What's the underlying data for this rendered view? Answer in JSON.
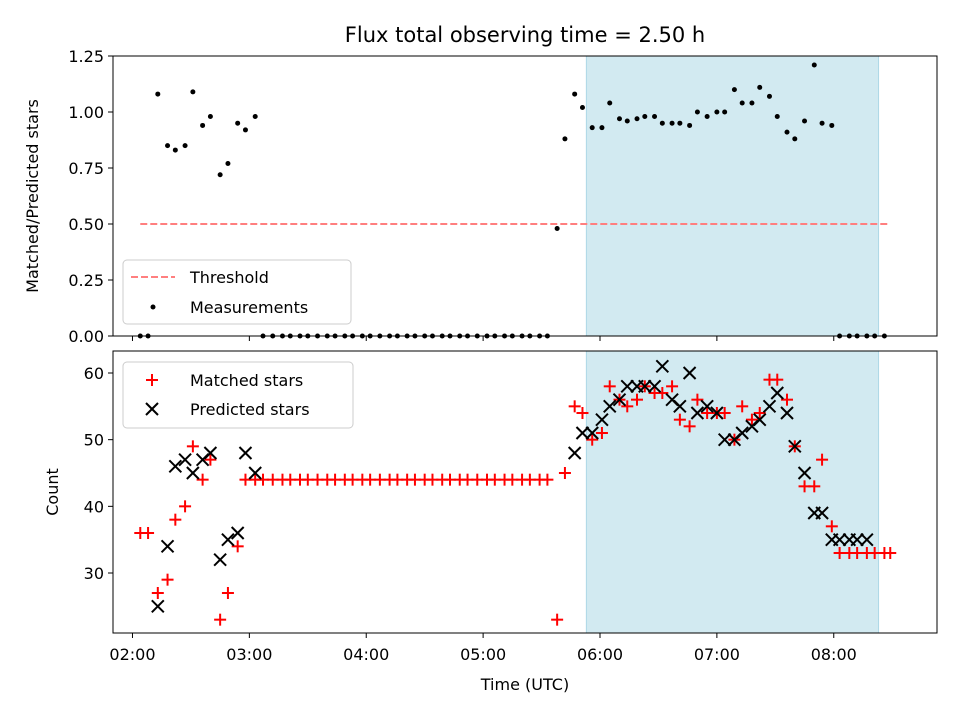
{
  "chart_data": [
    {
      "type": "scatter",
      "title": "Flux total observing time = 2.50 h",
      "xlabel": "",
      "ylabel": "Matched/Predicted stars",
      "ylim": [
        0,
        1.25
      ],
      "yticks": [
        "0.00",
        "0.25",
        "0.50",
        "0.75",
        "1.00",
        "1.25"
      ],
      "xlim": [
        "01:50",
        "08:53"
      ],
      "grid": false,
      "legend_position": "lower-left",
      "shaded_region": {
        "start": "05:53",
        "end": "08:23",
        "color": "#add8e6"
      },
      "threshold": {
        "name": "Threshold",
        "y": 0.5,
        "x_start": "02:04",
        "x_end": "08:29",
        "color": "#ff7f7f",
        "style": "dashed"
      },
      "series": [
        {
          "name": "Measurements",
          "color": "#000000",
          "marker": "dot",
          "x": [
            "02:04",
            "02:08",
            "02:13",
            "02:18",
            "02:22",
            "02:27",
            "02:31",
            "02:36",
            "02:40",
            "02:45",
            "02:49",
            "02:54",
            "02:58",
            "03:03",
            "03:07",
            "03:12",
            "03:17",
            "03:21",
            "03:26",
            "03:30",
            "03:35",
            "03:40",
            "03:44",
            "03:49",
            "03:53",
            "03:58",
            "04:02",
            "04:07",
            "04:12",
            "04:16",
            "04:21",
            "04:25",
            "04:30",
            "04:34",
            "04:39",
            "04:43",
            "04:48",
            "04:52",
            "04:57",
            "05:02",
            "05:06",
            "05:11",
            "05:15",
            "05:20",
            "05:24",
            "05:29",
            "05:33",
            "05:38",
            "05:42",
            "05:47",
            "05:51",
            "05:56",
            "06:01",
            "06:05",
            "06:10",
            "06:14",
            "06:19",
            "06:23",
            "06:28",
            "06:32",
            "06:37",
            "06:41",
            "06:46",
            "06:50",
            "06:55",
            "07:00",
            "07:04",
            "07:09",
            "07:13",
            "07:18",
            "07:22",
            "07:27",
            "07:31",
            "07:36",
            "07:40",
            "07:45",
            "07:50",
            "07:54",
            "07:59",
            "08:03",
            "08:08",
            "08:12",
            "08:17",
            "08:21",
            "08:26"
          ],
          "y": [
            0,
            0,
            1.08,
            0.85,
            0.83,
            0.85,
            1.09,
            0.94,
            0.98,
            0.72,
            0.77,
            0.95,
            0.92,
            0.98,
            0,
            0,
            0,
            0,
            0,
            0,
            0,
            0,
            0,
            0,
            0,
            0,
            0,
            0,
            0,
            0,
            0,
            0,
            0,
            0,
            0,
            0,
            0,
            0,
            0,
            0,
            0,
            0,
            0,
            0,
            0,
            0,
            0,
            0.48,
            0.88,
            1.08,
            1.02,
            0.93,
            0.93,
            1.04,
            0.97,
            0.96,
            0.97,
            0.98,
            0.98,
            0.95,
            0.95,
            0.95,
            0.94,
            1.0,
            0.98,
            1.0,
            1.0,
            1.1,
            1.04,
            1.04,
            1.11,
            1.07,
            0.98,
            0.91,
            0.88,
            0.96,
            1.21,
            0.95,
            0.94,
            0,
            0,
            0,
            0,
            0,
            0
          ]
        }
      ]
    },
    {
      "type": "scatter",
      "title": "",
      "xlabel": "Time (UTC)",
      "ylabel": "Count",
      "ylim": [
        21,
        63.3
      ],
      "yticks": [
        "30",
        "40",
        "50",
        "60"
      ],
      "xticks": [
        "02:00",
        "03:00",
        "04:00",
        "05:00",
        "06:00",
        "07:00",
        "08:00"
      ],
      "grid": false,
      "legend_position": "upper-left",
      "shaded_region": {
        "start": "05:53",
        "end": "08:23",
        "color": "#add8e6"
      },
      "series": [
        {
          "name": "Matched stars",
          "color": "#ff0000",
          "marker": "plus",
          "x": [
            "02:04",
            "02:08",
            "02:13",
            "02:18",
            "02:22",
            "02:27",
            "02:31",
            "02:36",
            "02:40",
            "02:45",
            "02:49",
            "02:54",
            "02:58",
            "03:03",
            "03:07",
            "03:12",
            "03:17",
            "03:21",
            "03:26",
            "03:30",
            "03:35",
            "03:40",
            "03:44",
            "03:49",
            "03:53",
            "03:58",
            "04:02",
            "04:07",
            "04:12",
            "04:16",
            "04:21",
            "04:25",
            "04:30",
            "04:34",
            "04:39",
            "04:43",
            "04:48",
            "04:52",
            "04:57",
            "05:02",
            "05:06",
            "05:11",
            "05:15",
            "05:20",
            "05:24",
            "05:29",
            "05:33",
            "05:38",
            "05:42",
            "05:47",
            "05:51",
            "05:56",
            "06:01",
            "06:05",
            "06:10",
            "06:14",
            "06:19",
            "06:23",
            "06:28",
            "06:32",
            "06:37",
            "06:41",
            "06:46",
            "06:50",
            "06:55",
            "07:00",
            "07:04",
            "07:09",
            "07:13",
            "07:18",
            "07:22",
            "07:27",
            "07:31",
            "07:36",
            "07:40",
            "07:45",
            "07:50",
            "07:54",
            "07:59",
            "08:03",
            "08:08",
            "08:12",
            "08:17",
            "08:21",
            "08:26",
            "08:29"
          ],
          "y": [
            36,
            36,
            27,
            29,
            38,
            40,
            49,
            44,
            47,
            23,
            27,
            34,
            44,
            44,
            44,
            44,
            44,
            44,
            44,
            44,
            44,
            44,
            44,
            44,
            44,
            44,
            44,
            44,
            44,
            44,
            44,
            44,
            44,
            44,
            44,
            44,
            44,
            44,
            44,
            44,
            44,
            44,
            44,
            44,
            44,
            44,
            44,
            23,
            45,
            55,
            54,
            50,
            51,
            58,
            56,
            55,
            56,
            58,
            57,
            57,
            58,
            53,
            52,
            56,
            54,
            54,
            54,
            50,
            55,
            53,
            54,
            59,
            59,
            56,
            49,
            43,
            43,
            47,
            37,
            33,
            33,
            33,
            33,
            33,
            33,
            33
          ]
        },
        {
          "name": "Predicted stars",
          "color": "#000000",
          "marker": "x",
          "x": [
            "02:13",
            "02:18",
            "02:22",
            "02:27",
            "02:31",
            "02:36",
            "02:40",
            "02:45",
            "02:49",
            "02:54",
            "02:58",
            "03:03",
            "05:47",
            "05:51",
            "05:56",
            "06:01",
            "06:05",
            "06:10",
            "06:14",
            "06:19",
            "06:23",
            "06:28",
            "06:32",
            "06:37",
            "06:41",
            "06:46",
            "06:50",
            "06:55",
            "07:00",
            "07:04",
            "07:09",
            "07:13",
            "07:18",
            "07:22",
            "07:27",
            "07:31",
            "07:36",
            "07:40",
            "07:45",
            "07:50",
            "07:54",
            "07:59",
            "08:03",
            "08:08",
            "08:12",
            "08:17"
          ],
          "y": [
            25,
            34,
            46,
            47,
            45,
            47,
            48,
            32,
            35,
            36,
            48,
            45,
            48,
            51,
            51,
            53,
            55,
            56,
            58,
            58,
            58,
            58,
            61,
            56,
            55,
            60,
            54,
            55,
            54,
            50,
            50,
            51,
            52,
            53,
            55,
            57,
            54,
            49,
            45,
            39,
            39,
            35,
            35,
            35,
            35,
            35
          ]
        }
      ]
    }
  ]
}
